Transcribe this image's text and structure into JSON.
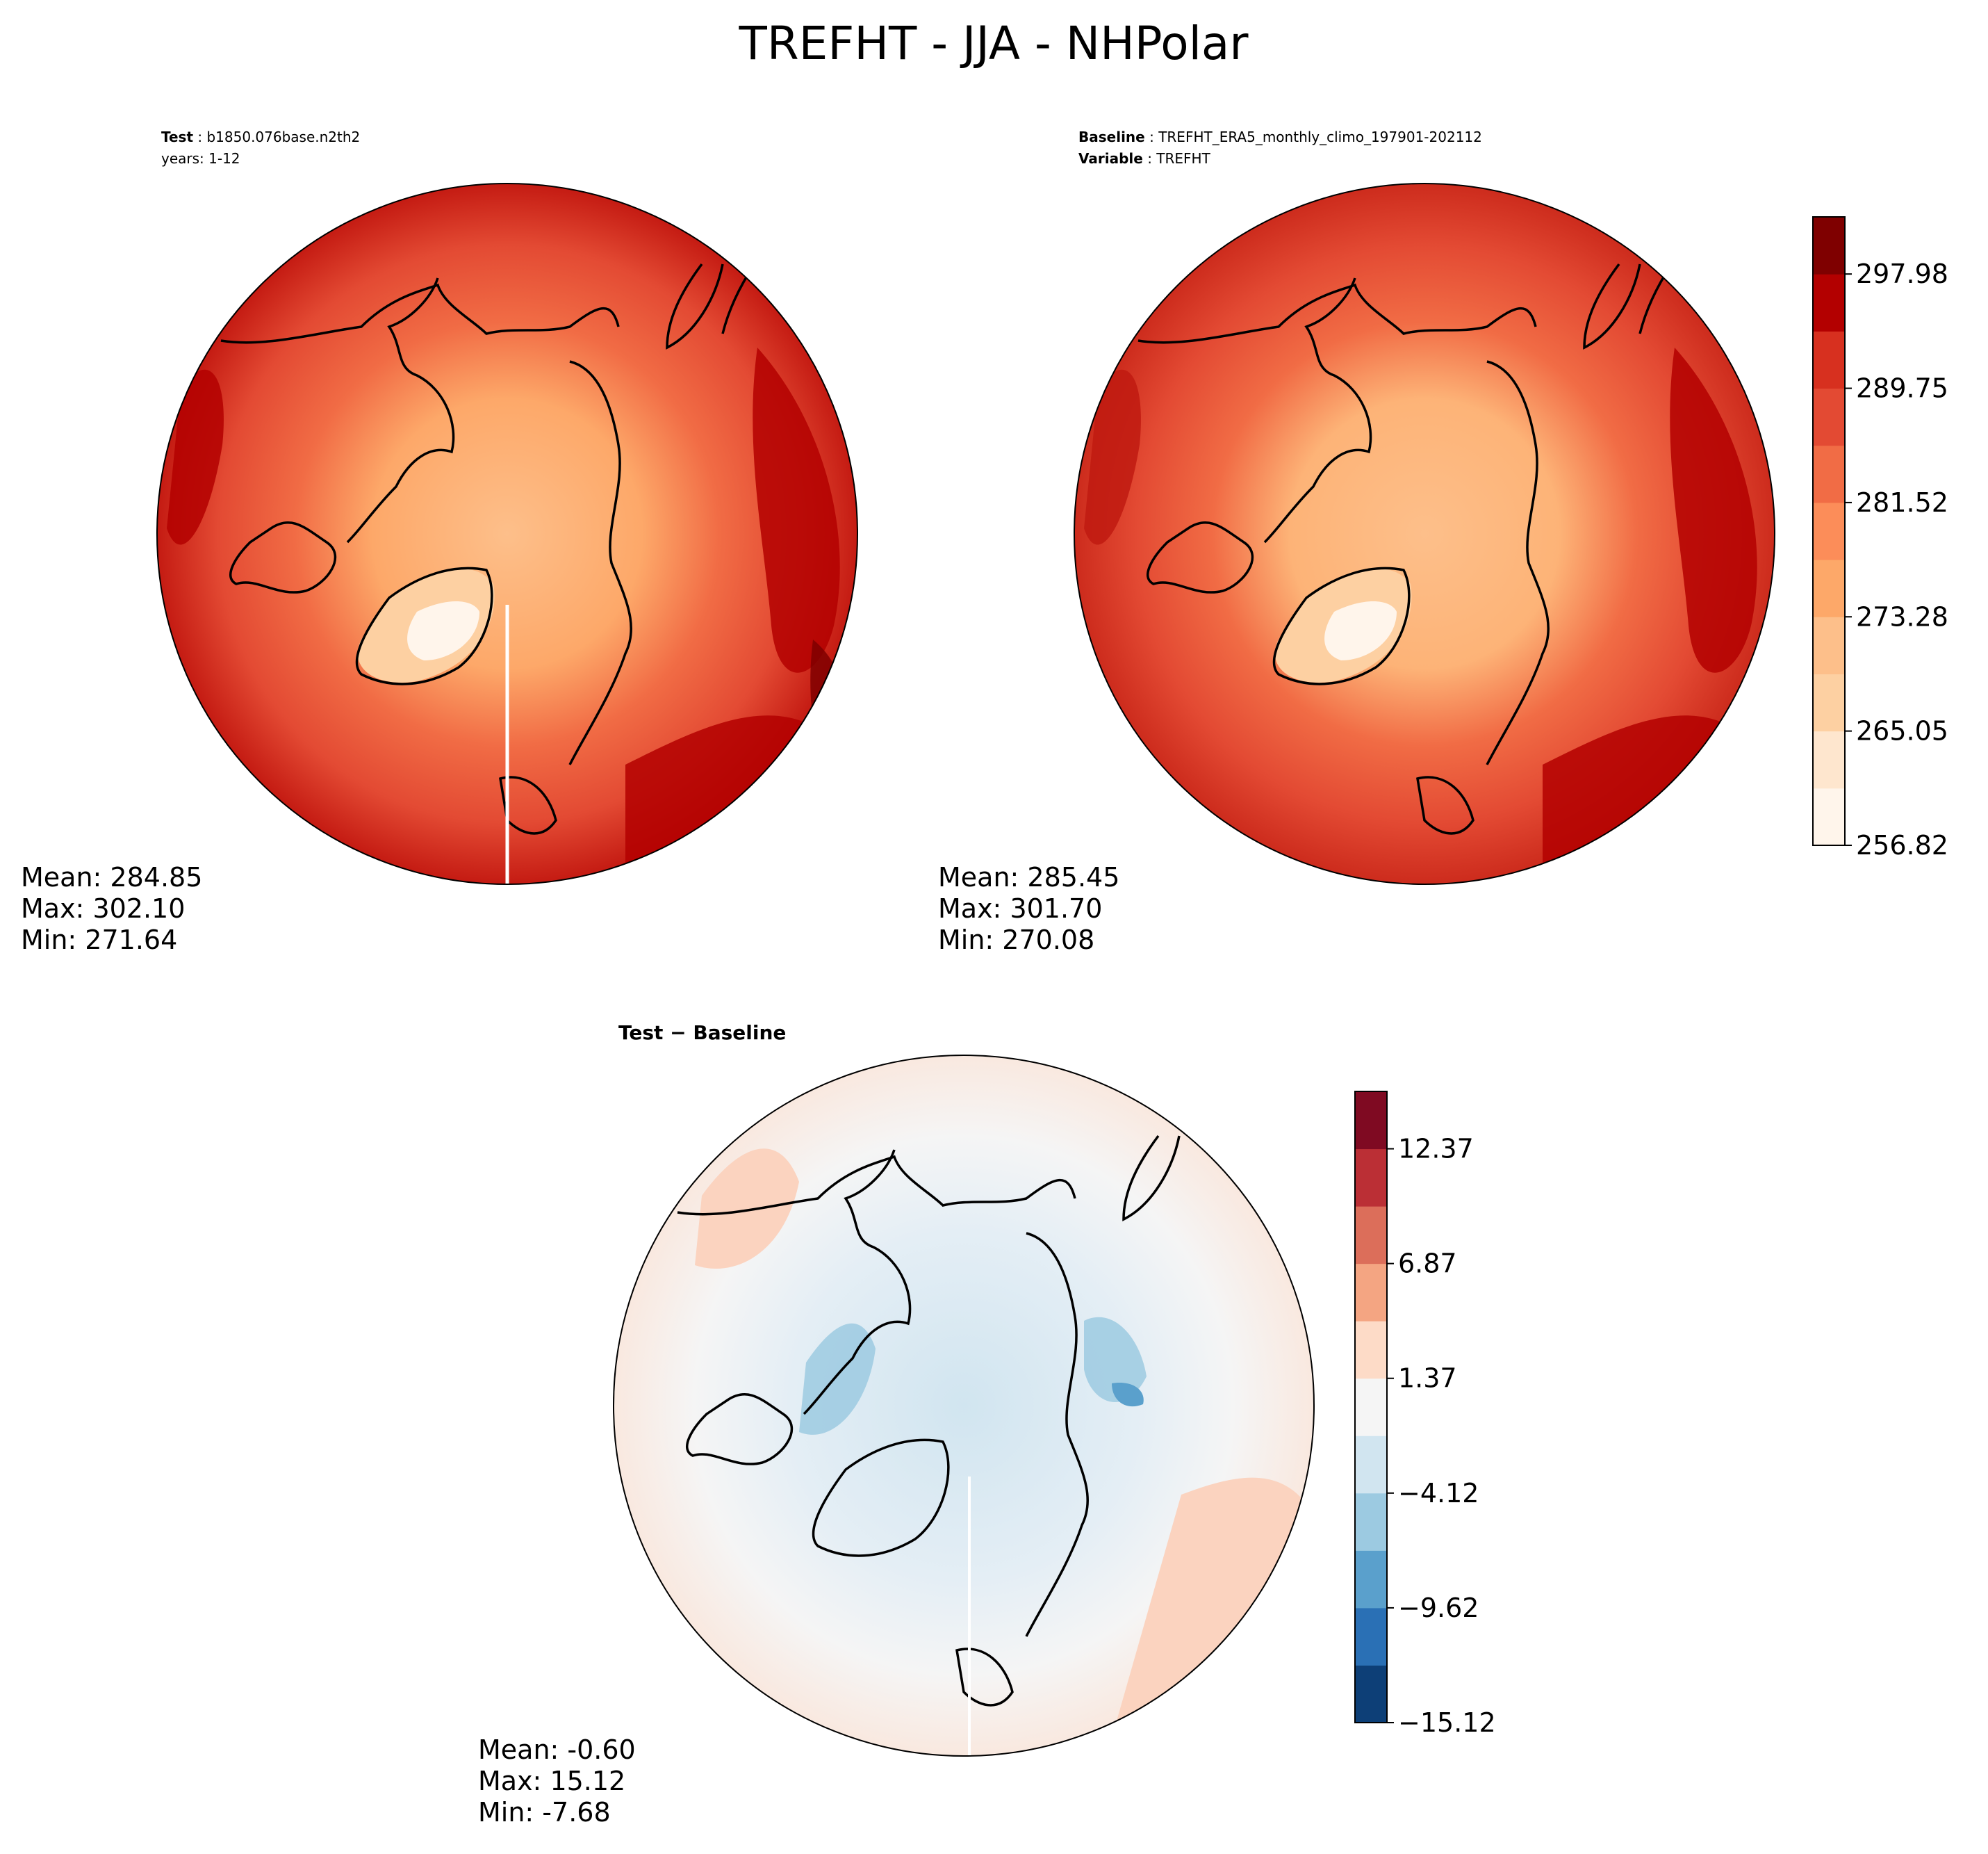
{
  "figure": {
    "title": "TREFHT - JJA - NHPolar"
  },
  "panels": {
    "test": {
      "label_bold": "Test",
      "label_value": "b1850.076base.n2th2",
      "line2": "years: 1-12",
      "stats": {
        "mean": "Mean: 284.85",
        "max": "Max: 302.10",
        "min": "Min: 271.64"
      }
    },
    "baseline": {
      "label_bold": "Baseline",
      "label_value": "TREFHT_ERA5_monthly_climo_197901-202112",
      "line2_bold": "Variable",
      "line2_value": "TREFHT",
      "stats": {
        "mean": "Mean: 285.45",
        "max": "Max: 301.70",
        "min": "Min: 270.08"
      }
    },
    "diff": {
      "title": "Test − Baseline",
      "stats": {
        "mean": "Mean: -0.60",
        "max": "Max: 15.12",
        "min": "Min: -7.68"
      }
    }
  },
  "chart_data": [
    {
      "type": "heatmap",
      "projection": "north polar stereographic",
      "panel": "test",
      "title": "Test: b1850.076base.n2th2",
      "subtitle": "years: 1-12",
      "stats": {
        "mean": 284.85,
        "max": 302.1,
        "min": 271.64
      },
      "colormap": "OrRd-like (light cream to dark red)",
      "shared_colorbar": true
    },
    {
      "type": "heatmap",
      "projection": "north polar stereographic",
      "panel": "baseline",
      "title": "Baseline: TREFHT_ERA5_monthly_climo_197901-202112",
      "subtitle": "Variable: TREFHT",
      "stats": {
        "mean": 285.45,
        "max": 301.7,
        "min": 270.08
      },
      "colorbar": {
        "ticks": [
          "256.82",
          "265.05",
          "273.28",
          "281.52",
          "289.75",
          "297.98"
        ],
        "range": [
          256.82,
          302.1
        ],
        "levels": 11,
        "colors": [
          "#fff5eb",
          "#fee6ce",
          "#fdd0a2",
          "#fdbf8a",
          "#fda869",
          "#fc8d59",
          "#f16c45",
          "#e34a33",
          "#d7301f",
          "#b30000",
          "#7f0000"
        ]
      }
    },
    {
      "type": "heatmap",
      "projection": "north polar stereographic",
      "panel": "diff",
      "title": "Test − Baseline",
      "stats": {
        "mean": -0.6,
        "max": 15.12,
        "min": -7.68
      },
      "colorbar": {
        "ticks": [
          "−15.12",
          "−9.62",
          "−4.12",
          "1.37",
          "6.87",
          "12.37"
        ],
        "range": [
          -15.12,
          15.12
        ],
        "levels": 11,
        "colors": [
          "#0d3f77",
          "#2a70b5",
          "#5aa0cc",
          "#9ccae1",
          "#d1e5f0",
          "#f5f5f5",
          "#fddbc7",
          "#f4a582",
          "#dc6e5a",
          "#bb2f35",
          "#7f0a22"
        ]
      }
    }
  ]
}
